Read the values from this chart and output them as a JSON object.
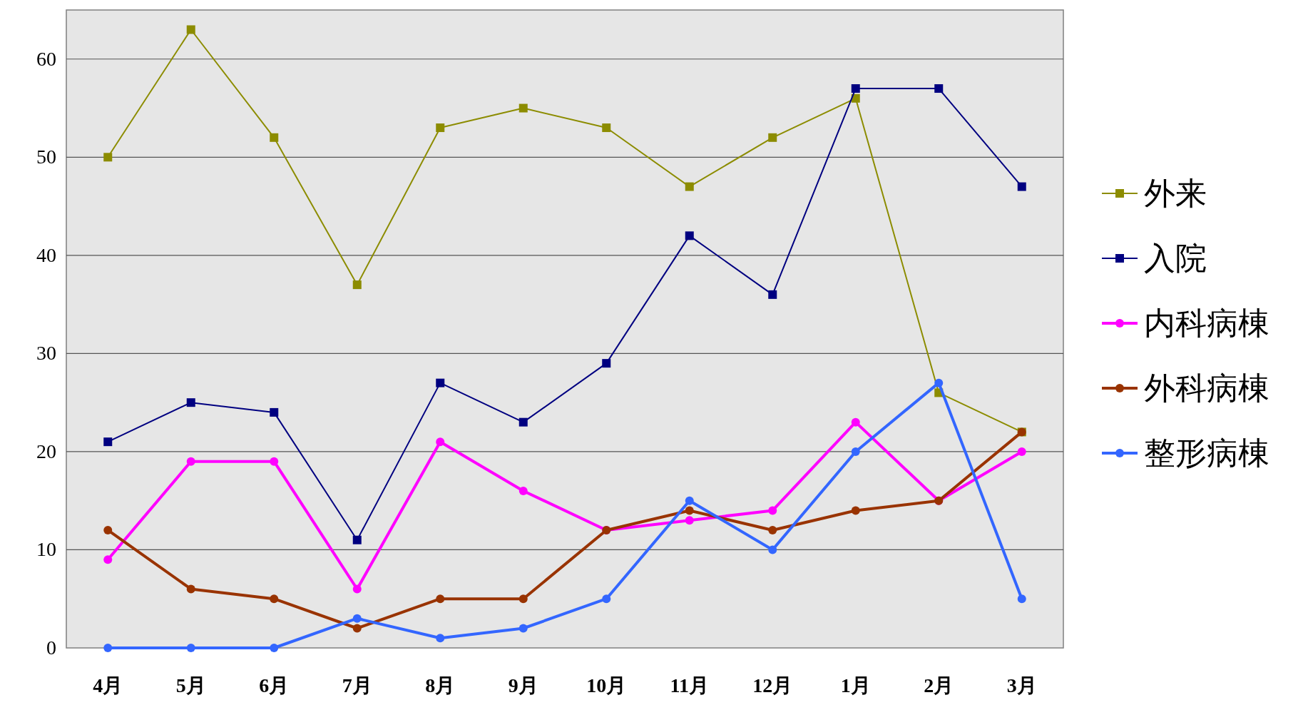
{
  "chart_data": {
    "type": "line",
    "categories": [
      "4月",
      "5月",
      "6月",
      "7月",
      "8月",
      "9月",
      "10月",
      "11月",
      "12月",
      "1月",
      "2月",
      "3月"
    ],
    "series": [
      {
        "name": "外来",
        "color": "#8c8c00",
        "marker": "square",
        "values": [
          50,
          63,
          52,
          37,
          53,
          55,
          53,
          47,
          52,
          56,
          26,
          22
        ]
      },
      {
        "name": "入院",
        "color": "#000080",
        "marker": "square",
        "values": [
          21,
          25,
          24,
          11,
          27,
          23,
          29,
          42,
          36,
          57,
          57,
          47
        ]
      },
      {
        "name": "内科病棟",
        "color": "#ff00ff",
        "marker": "circle",
        "values": [
          9,
          19,
          19,
          6,
          21,
          16,
          12,
          13,
          14,
          23,
          15,
          20
        ]
      },
      {
        "name": "外科病棟",
        "color": "#993300",
        "marker": "circle",
        "values": [
          12,
          6,
          5,
          2,
          5,
          5,
          12,
          14,
          12,
          14,
          15,
          22
        ]
      },
      {
        "name": "整形病棟",
        "color": "#3366ff",
        "marker": "circle",
        "values": [
          0,
          0,
          0,
          3,
          1,
          2,
          5,
          15,
          10,
          20,
          27,
          5
        ]
      }
    ],
    "ylim": [
      0,
      65
    ],
    "yticks": [
      0,
      10,
      20,
      30,
      40,
      50,
      60
    ],
    "grid": "y",
    "legend": "right"
  }
}
